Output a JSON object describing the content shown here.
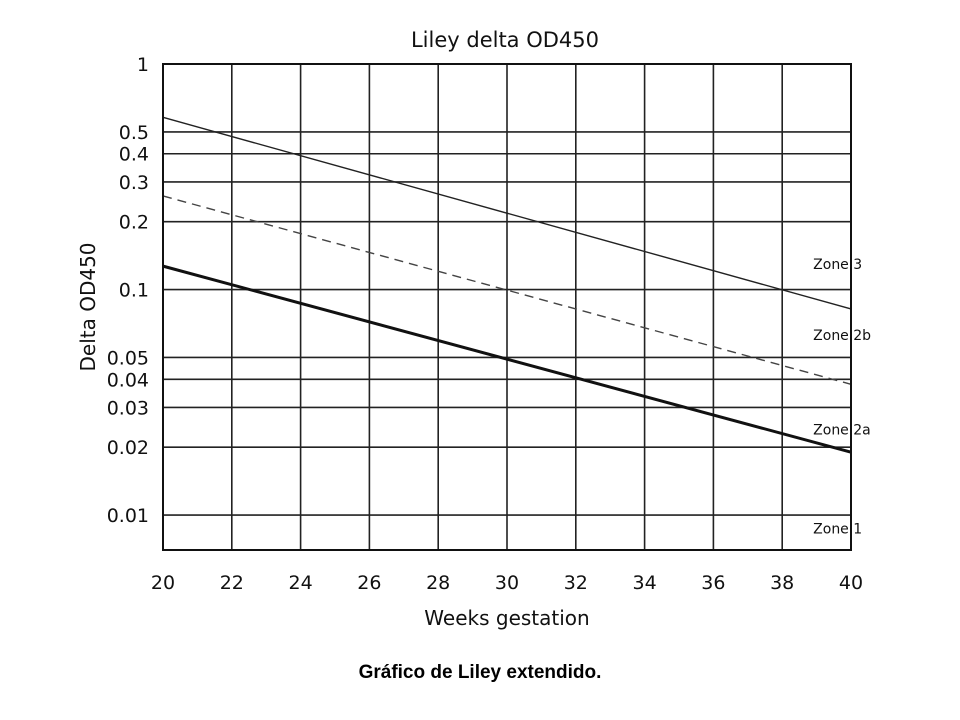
{
  "caption": "Gráfico de Liley extendido.",
  "chart_data": {
    "type": "line",
    "title": "Liley delta OD450",
    "xlabel": "Weeks gestation",
    "ylabel": "Delta OD450",
    "xlim": [
      20,
      40
    ],
    "ylim": [
      0.007,
      1
    ],
    "yscale": "log",
    "grid": true,
    "x_ticks": [
      20,
      22,
      24,
      26,
      28,
      30,
      32,
      34,
      36,
      38,
      40
    ],
    "y_ticks": [
      1,
      0.5,
      0.4,
      0.3,
      0.2,
      0.1,
      0.05,
      0.04,
      0.03,
      0.02,
      0.01
    ],
    "y_tick_labels": [
      "1",
      "0.5",
      "0.4",
      "0.3",
      "0.2",
      "0.1",
      "0.05",
      "0.04",
      "0.03",
      "0.02",
      "0.01"
    ],
    "series": [
      {
        "x": [
          20,
          40
        ],
        "values": [
          0.58,
          0.082
        ],
        "style": "solid-thin",
        "color": "#222222"
      },
      {
        "x": [
          20,
          40
        ],
        "values": [
          0.26,
          0.038
        ],
        "style": "dashed",
        "color": "#444444"
      },
      {
        "x": [
          20,
          40
        ],
        "values": [
          0.127,
          0.019
        ],
        "style": "solid-thick",
        "color": "#111111"
      }
    ],
    "annotations": [
      {
        "text": "Zone 3",
        "x": 38.9,
        "y": 0.13
      },
      {
        "text": "Zone 2b",
        "x": 38.9,
        "y": 0.063
      },
      {
        "text": "Zone 2a",
        "x": 38.9,
        "y": 0.024
      },
      {
        "text": "Zone 1",
        "x": 38.9,
        "y": 0.0087
      }
    ]
  }
}
